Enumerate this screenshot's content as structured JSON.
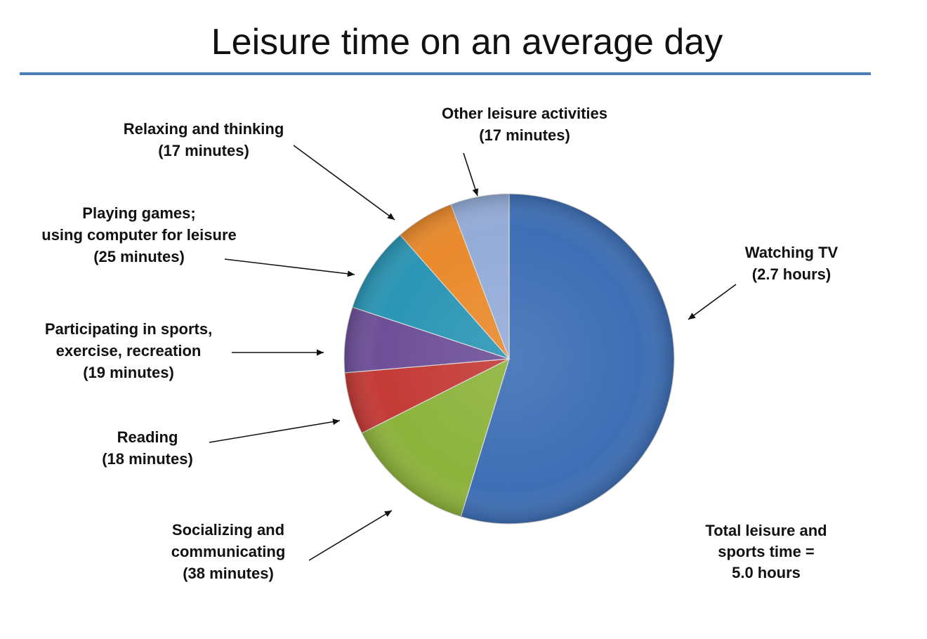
{
  "chart_data": {
    "type": "pie",
    "title": "Leisure time on an average day",
    "unit": "minutes",
    "slices": [
      {
        "name": "Watching TV",
        "label_lines": [
          "Watching TV",
          "(2.7 hours)"
        ],
        "value": 162,
        "color": "#3e6fb5"
      },
      {
        "name": "Socializing and communicating",
        "label_lines": [
          "Socializing and",
          "communicating",
          "(38 minutes)"
        ],
        "value": 38,
        "color": "#8db33c"
      },
      {
        "name": "Reading",
        "label_lines": [
          "Reading",
          "(18 minutes)"
        ],
        "value": 18,
        "color": "#c43a36"
      },
      {
        "name": "Participating in sports, exercise, recreation",
        "label_lines": [
          "Participating in sports,",
          "exercise, recreation",
          "(19 minutes)"
        ],
        "value": 19,
        "color": "#6e4f98"
      },
      {
        "name": "Playing games; using computer for leisure",
        "label_lines": [
          "Playing games;",
          "using computer for leisure",
          "(25 minutes)"
        ],
        "value": 25,
        "color": "#2b96b5"
      },
      {
        "name": "Relaxing and thinking",
        "label_lines": [
          "Relaxing and thinking",
          "(17 minutes)"
        ],
        "value": 17,
        "color": "#e98a2c"
      },
      {
        "name": "Other leisure activities",
        "label_lines": [
          "Other leisure activities",
          "(17 minutes)"
        ],
        "value": 17,
        "color": "#94acd8"
      }
    ],
    "total_note": [
      "Total leisure and",
      "sports time =",
      "5.0 hours"
    ]
  }
}
